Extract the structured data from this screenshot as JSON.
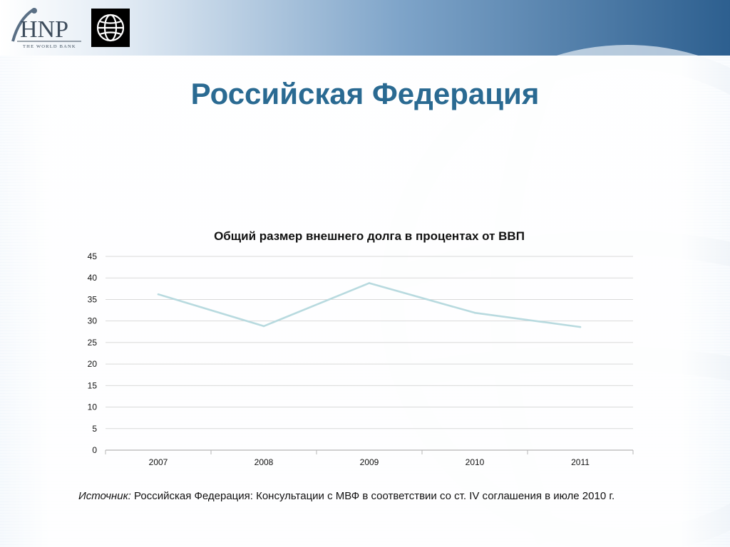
{
  "slide": {
    "title": "Российская Федерация",
    "source_label": "Источник:",
    "source_text": " Российская Федерация: Консультации с МВФ в соответствии со  ст. IV соглашения в июле 2010 г."
  },
  "logos": {
    "hnp_text": "HNP",
    "hnp_tagline": "THE WORLD BANK",
    "world_bank_icon": "globe-icon"
  },
  "colors": {
    "title": "#2a6a92",
    "line": "#b8dadf",
    "grid": "#d9d9d9"
  },
  "chart_data": {
    "type": "line",
    "title": "Общий размер внешнего долга в процентах от ВВП",
    "categories": [
      "2007",
      "2008",
      "2009",
      "2010",
      "2011"
    ],
    "series": [
      {
        "values": [
          36.2,
          28.8,
          38.8,
          31.9,
          28.6
        ]
      }
    ],
    "ylim": [
      0,
      45
    ],
    "yticks": [
      "0",
      "5",
      "10",
      "15",
      "20",
      "25",
      "30",
      "35",
      "40",
      "45"
    ],
    "grid": true,
    "legend": "none"
  }
}
